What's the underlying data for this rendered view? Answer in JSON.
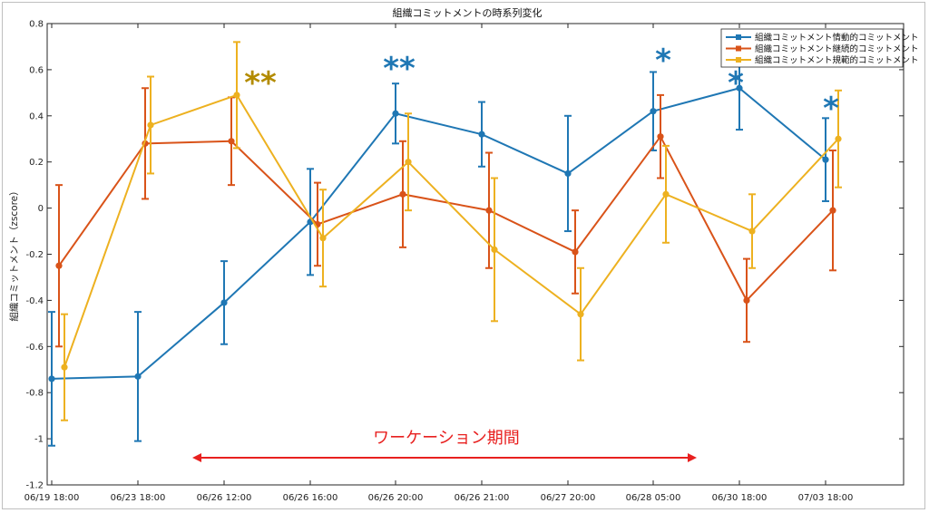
{
  "chart_data": {
    "type": "line",
    "title": "組織コミットメントの時系列変化",
    "ylabel": "組織コミットメント（zscore）",
    "xlabel": "",
    "ylim": [
      -1.2,
      0.8
    ],
    "yticks": [
      "0.8",
      "0.6",
      "0.4",
      "0.2",
      "0",
      "-0.2",
      "-0.4",
      "-0.6",
      "-0.8",
      "-1",
      "-1.2"
    ],
    "categories": [
      "06/19 18:00",
      "06/23 18:00",
      "06/26 12:00",
      "06/26 16:00",
      "06/26 20:00",
      "06/26 21:00",
      "06/27 20:00",
      "06/28 05:00",
      "06/30 18:00",
      "07/03 18:00"
    ],
    "grid": false,
    "legend_position": "top-right",
    "series": [
      {
        "name": "組織コミットメント情動的コミットメント",
        "color": "#1f77b4",
        "values": [
          -0.74,
          -0.73,
          -0.41,
          -0.06,
          0.41,
          0.32,
          0.15,
          0.42,
          0.52,
          0.21
        ],
        "error": [
          0.29,
          0.28,
          0.18,
          0.23,
          0.13,
          0.14,
          0.25,
          0.17,
          0.18,
          0.18
        ]
      },
      {
        "name": "組織コミットメント継続的コミットメント",
        "color": "#d95319",
        "values": [
          -0.25,
          0.28,
          0.29,
          -0.07,
          0.06,
          -0.01,
          -0.19,
          0.31,
          -0.4,
          -0.01
        ],
        "error": [
          0.35,
          0.24,
          0.19,
          0.18,
          0.23,
          0.25,
          0.18,
          0.18,
          0.18,
          0.26
        ]
      },
      {
        "name": "組織コミットメント規範的コミットメント",
        "color": "#edb120",
        "values": [
          -0.69,
          0.36,
          0.49,
          -0.13,
          0.2,
          -0.18,
          -0.46,
          0.06,
          -0.1,
          0.3
        ],
        "error": [
          0.23,
          0.21,
          0.23,
          0.21,
          0.21,
          0.31,
          0.2,
          0.21,
          0.16,
          0.21
        ]
      }
    ],
    "annotations": [
      {
        "text": "**",
        "category_index": 2,
        "y": 0.56,
        "color": "#b38b00"
      },
      {
        "text": "**",
        "category_index": 4,
        "y": 0.61,
        "color": "#1f77b4"
      },
      {
        "text": "*",
        "category_index": 7,
        "y": 0.6,
        "color": "#1f77b4"
      },
      {
        "text": "*",
        "category_index": 8,
        "y": 0.52,
        "color": "#1f77b4"
      },
      {
        "text": "*",
        "category_index": 9,
        "y": 0.41,
        "color": "#1f77b4"
      }
    ],
    "period_label": "ワーケーション期間",
    "period_color": "#e8201f"
  }
}
